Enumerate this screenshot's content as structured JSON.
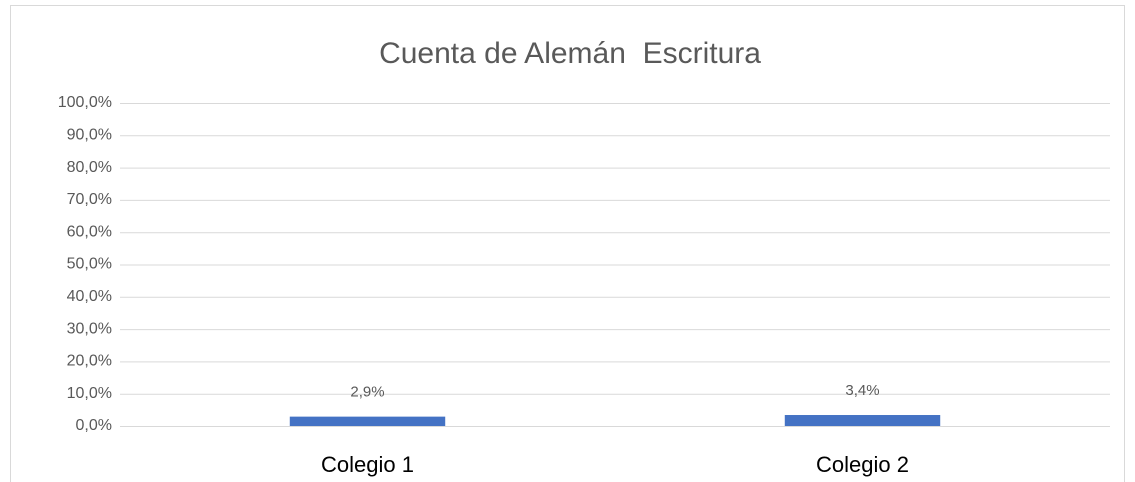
{
  "chart_data": {
    "type": "bar",
    "title": "Cuenta de Alemán  Escritura",
    "categories": [
      "Colegio 1",
      "Colegio 2"
    ],
    "values": [
      2.9,
      3.4
    ],
    "value_labels": [
      "2,9%",
      "3,4%"
    ],
    "color": "#4472c4",
    "ylim": [
      0,
      100
    ],
    "yticks": [
      {
        "value": 0,
        "label": "0,0%"
      },
      {
        "value": 10,
        "label": "10,0%"
      },
      {
        "value": 20,
        "label": "20,0%"
      },
      {
        "value": 30,
        "label": "30,0%"
      },
      {
        "value": 40,
        "label": "40,0%"
      },
      {
        "value": 50,
        "label": "50,0%"
      },
      {
        "value": 60,
        "label": "60,0%"
      },
      {
        "value": 70,
        "label": "70,0%"
      },
      {
        "value": 80,
        "label": "80,0%"
      },
      {
        "value": 90,
        "label": "90,0%"
      },
      {
        "value": 100,
        "label": "100,0%"
      }
    ],
    "grid": true
  }
}
